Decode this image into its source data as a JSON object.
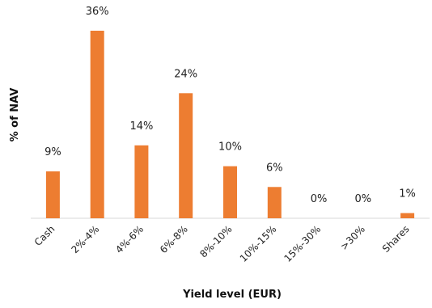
{
  "chart_data": {
    "type": "bar",
    "title": "",
    "xlabel": "Yield level (EUR)",
    "ylabel": "% of NAV",
    "categories": [
      "Cash",
      "2%-4%",
      "4%-6%",
      "6%-8%",
      "8%-10%",
      "10%-15%",
      "15%-30%",
      ">30%",
      "Shares"
    ],
    "values": [
      9,
      36,
      14,
      24,
      10,
      6,
      0,
      0,
      1
    ],
    "data_labels": [
      "9%",
      "36%",
      "14%",
      "24%",
      "10%",
      "6%",
      "0%",
      "0%",
      "1%"
    ],
    "ylim": [
      0,
      37
    ],
    "grid": false,
    "legend": "none",
    "colors": {
      "bar": "#ED7D31",
      "axis": "#D9D9D9",
      "text": "#222222"
    }
  }
}
